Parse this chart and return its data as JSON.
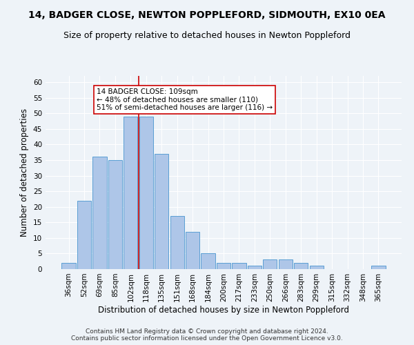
{
  "title": "14, BADGER CLOSE, NEWTON POPPLEFORD, SIDMOUTH, EX10 0EA",
  "subtitle": "Size of property relative to detached houses in Newton Poppleford",
  "xlabel": "Distribution of detached houses by size in Newton Poppleford",
  "ylabel": "Number of detached properties",
  "footnote": "Contains HM Land Registry data © Crown copyright and database right 2024.\nContains public sector information licensed under the Open Government Licence v3.0.",
  "bar_labels": [
    "36sqm",
    "52sqm",
    "69sqm",
    "85sqm",
    "102sqm",
    "118sqm",
    "135sqm",
    "151sqm",
    "168sqm",
    "184sqm",
    "200sqm",
    "217sqm",
    "233sqm",
    "250sqm",
    "266sqm",
    "283sqm",
    "299sqm",
    "315sqm",
    "332sqm",
    "348sqm",
    "365sqm"
  ],
  "bar_values": [
    2,
    22,
    36,
    35,
    49,
    49,
    37,
    17,
    12,
    5,
    2,
    2,
    1,
    3,
    3,
    2,
    1,
    0,
    0,
    0,
    1
  ],
  "bar_color": "#aec6e8",
  "bar_edge_color": "#5a9fd4",
  "vline_x": 4.5,
  "vline_color": "#cc0000",
  "annotation_text": "14 BADGER CLOSE: 109sqm\n← 48% of detached houses are smaller (110)\n51% of semi-detached houses are larger (116) →",
  "annotation_box_color": "white",
  "annotation_box_edge_color": "#cc0000",
  "ylim": [
    0,
    62
  ],
  "yticks": [
    0,
    5,
    10,
    15,
    20,
    25,
    30,
    35,
    40,
    45,
    50,
    55,
    60
  ],
  "bg_color": "#eef3f8",
  "plot_bg_color": "#eef3f8",
  "title_fontsize": 10,
  "subtitle_fontsize": 9,
  "xlabel_fontsize": 8.5,
  "ylabel_fontsize": 8.5,
  "tick_fontsize": 7.5,
  "annotation_fontsize": 7.5,
  "footnote_fontsize": 6.5
}
